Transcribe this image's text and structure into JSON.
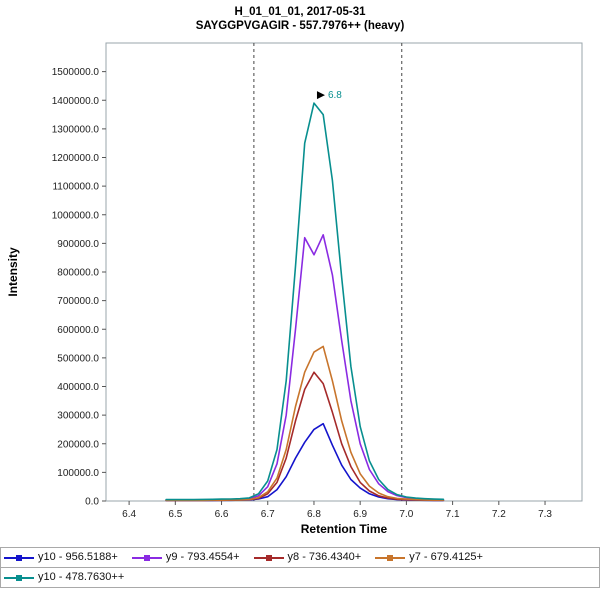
{
  "header": {
    "title": "H_01_01_01, 2017-05-31",
    "subtitle": "SAYGGPVGAGIR - 557.7976++ (heavy)"
  },
  "chart_data": {
    "type": "line",
    "title": "H_01_01_01, 2017-05-31",
    "subtitle": "SAYGGPVGAGIR - 557.7976++ (heavy)",
    "xlabel": "Retention Time",
    "ylabel": "Intensity",
    "xlim": [
      6.35,
      7.38
    ],
    "ylim": [
      0,
      1600000
    ],
    "x_ticks": [
      6.4,
      6.5,
      6.6,
      6.7,
      6.8,
      6.9,
      7.0,
      7.1,
      7.2,
      7.3
    ],
    "y_ticks": [
      0,
      100000,
      200000,
      300000,
      400000,
      500000,
      600000,
      700000,
      800000,
      900000,
      1000000,
      1100000,
      1200000,
      1300000,
      1400000,
      1500000
    ],
    "grid": false,
    "legend_position": "bottom",
    "integration_boundaries": [
      6.67,
      6.99
    ],
    "boundary_color": "#444444",
    "frame_color": "#9aa4ab",
    "peak_annotation": {
      "text": "6.8",
      "x": 6.8,
      "y": 1390000,
      "color": "#088f8f",
      "arrow_color": "#000000"
    },
    "x": [
      6.48,
      6.5,
      6.52,
      6.54,
      6.56,
      6.58,
      6.6,
      6.62,
      6.64,
      6.66,
      6.68,
      6.7,
      6.72,
      6.74,
      6.76,
      6.78,
      6.8,
      6.82,
      6.84,
      6.86,
      6.88,
      6.9,
      6.92,
      6.94,
      6.96,
      6.98,
      7.0,
      7.02,
      7.04,
      7.06,
      7.08
    ],
    "series": [
      {
        "name": "y10 - 956.5188+",
        "color": "#1414cc",
        "values": [
          2000,
          2000,
          2000,
          2000,
          2000,
          2000,
          2500,
          2500,
          3000,
          4000,
          7000,
          15000,
          40000,
          85000,
          150000,
          205000,
          250000,
          270000,
          195000,
          125000,
          75000,
          45000,
          25000,
          14000,
          8000,
          5000,
          4000,
          3000,
          2500,
          2000,
          2000
        ]
      },
      {
        "name": "y9 - 793.4554+",
        "color": "#8a2be2",
        "values": [
          3000,
          3000,
          3000,
          3000,
          3500,
          4000,
          4500,
          5000,
          6000,
          8000,
          18000,
          50000,
          130000,
          300000,
          600000,
          920000,
          860000,
          930000,
          790000,
          560000,
          350000,
          200000,
          110000,
          60000,
          33000,
          19000,
          12000,
          8000,
          6000,
          5000,
          4000
        ]
      },
      {
        "name": "y8 - 736.4340+",
        "color": "#a52a2a",
        "values": [
          2000,
          2000,
          2000,
          2000,
          2000,
          2500,
          2500,
          3000,
          3500,
          4500,
          9000,
          25000,
          65000,
          150000,
          280000,
          390000,
          450000,
          410000,
          310000,
          200000,
          120000,
          65000,
          35000,
          18000,
          10000,
          6000,
          4500,
          3500,
          3000,
          2500,
          2500
        ]
      },
      {
        "name": "y7 - 679.4125+",
        "color": "#c8752c",
        "values": [
          2500,
          2500,
          2500,
          2500,
          2500,
          3000,
          3000,
          3500,
          4000,
          5000,
          12000,
          32000,
          80000,
          180000,
          330000,
          450000,
          520000,
          540000,
          420000,
          280000,
          170000,
          95000,
          52000,
          28000,
          15000,
          9000,
          6500,
          5000,
          4000,
          3000,
          3000
        ]
      },
      {
        "name": "y10 - 478.7630++",
        "color": "#088f8f",
        "values": [
          5000,
          5000,
          5000,
          5000,
          5500,
          6000,
          6500,
          7000,
          8000,
          11000,
          25000,
          70000,
          180000,
          420000,
          820000,
          1250000,
          1390000,
          1350000,
          1120000,
          780000,
          470000,
          260000,
          140000,
          75000,
          40000,
          22000,
          14000,
          10000,
          8000,
          6500,
          6000
        ]
      }
    ]
  }
}
